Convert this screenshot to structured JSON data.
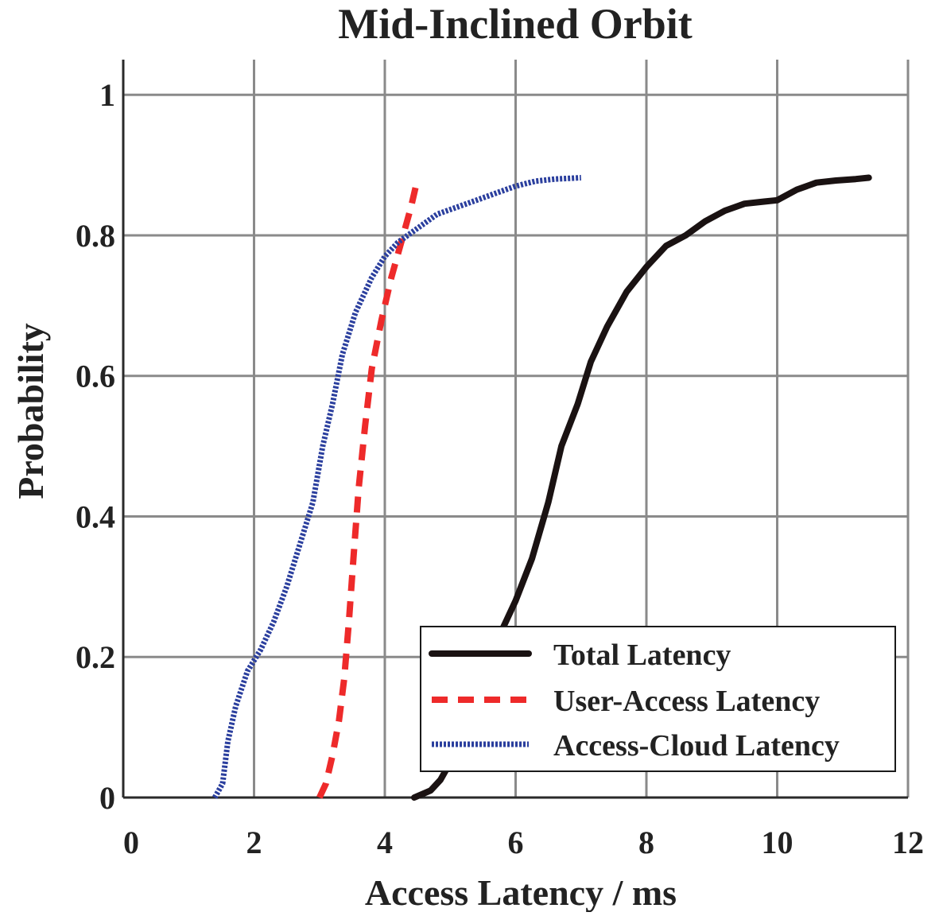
{
  "chart_data": {
    "type": "line",
    "title": "Mid-Inclined Orbit",
    "xlabel": "Access Latency / ms",
    "ylabel": "Probability",
    "xlim": [
      0,
      12
    ],
    "ylim": [
      0,
      1.05
    ],
    "grid": true,
    "legend_position": "bottom-right",
    "x_ticks": [
      0,
      2,
      4,
      6,
      8,
      10,
      12
    ],
    "x_tick_labels": [
      "0",
      "2",
      "4",
      "6",
      "8",
      "10",
      "12"
    ],
    "y_ticks": [
      0,
      0.2,
      0.4,
      0.6,
      0.8,
      1
    ],
    "y_tick_labels": [
      "0",
      "0.2",
      "0.4",
      "0.6",
      "0.8",
      "1"
    ],
    "series": [
      {
        "name": "Total Latency",
        "color": "#1a1212",
        "style": "solid",
        "x": [
          4.45,
          4.7,
          4.85,
          5.0,
          5.2,
          5.4,
          5.6,
          5.8,
          6.0,
          6.25,
          6.5,
          6.7,
          6.95,
          7.15,
          7.4,
          7.7,
          8.0,
          8.3,
          8.6,
          8.9,
          9.2,
          9.5,
          9.8,
          10.0,
          10.3,
          10.6,
          10.9,
          11.2,
          11.4
        ],
        "y": [
          0.0,
          0.01,
          0.025,
          0.05,
          0.09,
          0.14,
          0.19,
          0.24,
          0.28,
          0.34,
          0.42,
          0.5,
          0.56,
          0.62,
          0.67,
          0.72,
          0.755,
          0.785,
          0.8,
          0.82,
          0.835,
          0.845,
          0.848,
          0.85,
          0.865,
          0.875,
          0.878,
          0.88,
          0.882
        ]
      },
      {
        "name": "User-Access Latency",
        "color": "#ee2a2a",
        "style": "dashed",
        "x": [
          3.0,
          3.1,
          3.2,
          3.3,
          3.38,
          3.45,
          3.52,
          3.6,
          3.7,
          3.8,
          3.95,
          4.1,
          4.25,
          4.4,
          4.5
        ],
        "y": [
          0.0,
          0.02,
          0.06,
          0.11,
          0.17,
          0.25,
          0.34,
          0.44,
          0.53,
          0.61,
          0.68,
          0.74,
          0.79,
          0.84,
          0.88
        ]
      },
      {
        "name": "Access-Cloud Latency",
        "color": "#2b3f9e",
        "style": "dotted",
        "x": [
          1.4,
          1.52,
          1.6,
          1.72,
          1.9,
          2.1,
          2.3,
          2.5,
          2.7,
          2.9,
          3.05,
          3.2,
          3.35,
          3.55,
          3.8,
          4.0,
          4.2,
          4.5,
          4.8,
          5.1,
          5.4,
          5.7,
          6.0,
          6.3,
          6.6,
          7.0
        ],
        "y": [
          0.0,
          0.02,
          0.08,
          0.13,
          0.18,
          0.21,
          0.25,
          0.3,
          0.36,
          0.42,
          0.5,
          0.56,
          0.63,
          0.69,
          0.74,
          0.77,
          0.79,
          0.81,
          0.83,
          0.84,
          0.85,
          0.86,
          0.87,
          0.877,
          0.88,
          0.882
        ]
      }
    ]
  }
}
